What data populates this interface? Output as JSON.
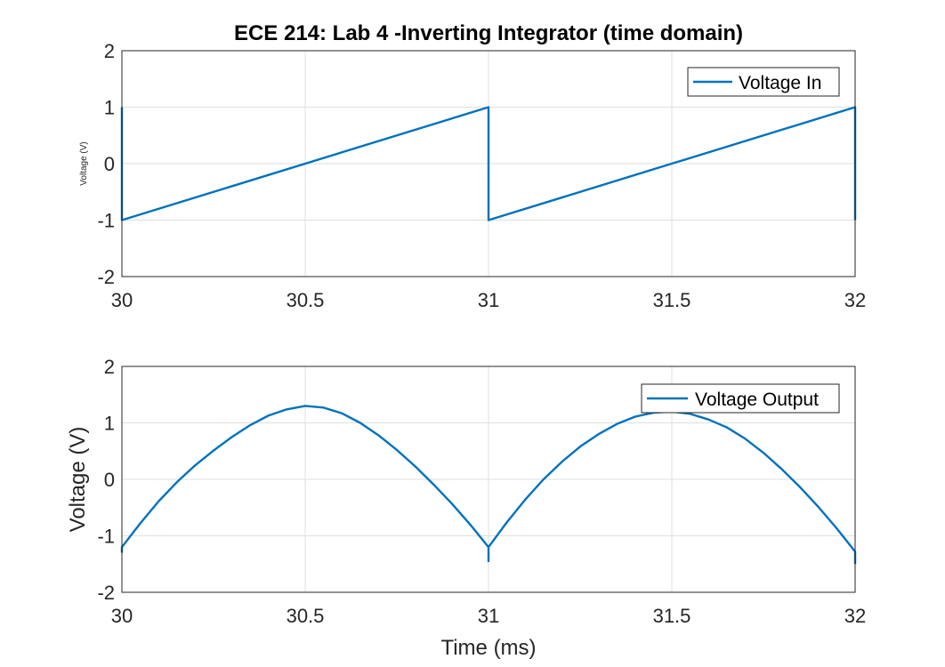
{
  "chart_data": [
    {
      "type": "line",
      "title": "ECE 214: Lab 4 -Inverting Integrator (time domain)",
      "xlabel": "",
      "ylabel": "Voltage (V)",
      "xlim": [
        30,
        32
      ],
      "ylim": [
        -2,
        2
      ],
      "xticks": [
        "30",
        "30.5",
        "31",
        "31.5",
        "32"
      ],
      "yticks": [
        "2",
        "1",
        "0",
        "-1",
        "-2"
      ],
      "grid": true,
      "legend_position": "top-right",
      "series": [
        {
          "name": "Voltage In",
          "color": "#0072BD",
          "points": [
            [
              30,
              1
            ],
            [
              30,
              -1
            ],
            [
              31,
              1
            ],
            [
              31,
              -1
            ],
            [
              32,
              1
            ],
            [
              32,
              -1
            ]
          ]
        }
      ]
    },
    {
      "type": "line",
      "title": "",
      "xlabel": "Time (ms)",
      "ylabel": "Voltage (V)",
      "xlim": [
        30,
        32
      ],
      "ylim": [
        -2,
        2
      ],
      "xticks": [
        "30",
        "30.5",
        "31",
        "31.5",
        "32"
      ],
      "yticks": [
        "2",
        "1",
        "0",
        "-1",
        "-2"
      ],
      "grid": true,
      "legend_position": "top-right",
      "series": [
        {
          "name": "Voltage Output",
          "color": "#0072BD",
          "points": [
            [
              30,
              -1.3
            ],
            [
              30,
              -1.2
            ],
            [
              30.05,
              -0.78
            ],
            [
              30.1,
              -0.39
            ],
            [
              30.15,
              -0.05
            ],
            [
              30.2,
              0.25
            ],
            [
              30.25,
              0.51
            ],
            [
              30.3,
              0.75
            ],
            [
              30.35,
              0.96
            ],
            [
              30.4,
              1.13
            ],
            [
              30.45,
              1.24
            ],
            [
              30.5,
              1.3
            ],
            [
              30.55,
              1.27
            ],
            [
              30.6,
              1.17
            ],
            [
              30.65,
              1.0
            ],
            [
              30.7,
              0.78
            ],
            [
              30.75,
              0.52
            ],
            [
              30.8,
              0.23
            ],
            [
              30.85,
              -0.09
            ],
            [
              30.9,
              -0.43
            ],
            [
              30.95,
              -0.8
            ],
            [
              31,
              -1.2
            ],
            [
              31,
              -1.45
            ],
            [
              31,
              -1.2
            ],
            [
              31.05,
              -0.76
            ],
            [
              31.1,
              -0.36
            ],
            [
              31.15,
              0.0
            ],
            [
              31.2,
              0.31
            ],
            [
              31.25,
              0.58
            ],
            [
              31.3,
              0.8
            ],
            [
              31.35,
              0.98
            ],
            [
              31.4,
              1.11
            ],
            [
              31.45,
              1.18
            ],
            [
              31.5,
              1.2
            ],
            [
              31.55,
              1.16
            ],
            [
              31.6,
              1.06
            ],
            [
              31.65,
              0.92
            ],
            [
              31.7,
              0.72
            ],
            [
              31.75,
              0.47
            ],
            [
              31.8,
              0.18
            ],
            [
              31.85,
              -0.14
            ],
            [
              31.9,
              -0.49
            ],
            [
              31.95,
              -0.87
            ],
            [
              32,
              -1.28
            ],
            [
              32,
              -1.5
            ]
          ]
        }
      ]
    }
  ]
}
